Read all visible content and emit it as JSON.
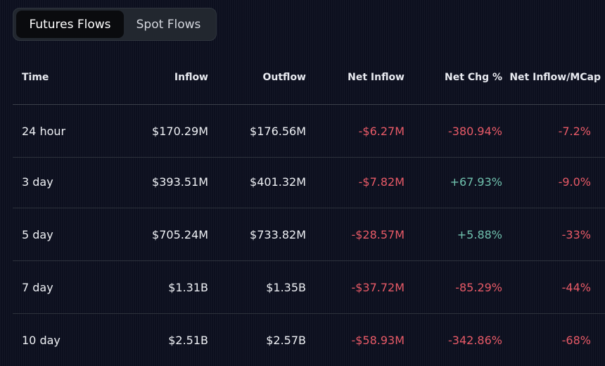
{
  "tabs": {
    "futures_label": "Futures Flows",
    "spot_label": "Spot Flows",
    "active": "futures"
  },
  "columns": {
    "time": "Time",
    "inflow": "Inflow",
    "outflow": "Outflow",
    "net_inflow": "Net Inflow",
    "net_chg": "Net Chg %",
    "net_inflow_mcap": "Net Inflow/MCap"
  },
  "rows": [
    {
      "time": "24 hour",
      "inflow": "$170.29M",
      "outflow": "$176.56M",
      "net_inflow": "-$6.27M",
      "net_chg": "-380.94%",
      "net_inflow_mcap": "-7.2%"
    },
    {
      "time": "3 day",
      "inflow": "$393.51M",
      "outflow": "$401.32M",
      "net_inflow": "-$7.82M",
      "net_chg": "+67.93%",
      "net_inflow_mcap": "-9.0%"
    },
    {
      "time": "5 day",
      "inflow": "$705.24M",
      "outflow": "$733.82M",
      "net_inflow": "-$28.57M",
      "net_chg": "+5.88%",
      "net_inflow_mcap": "-33%"
    },
    {
      "time": "7 day",
      "inflow": "$1.31B",
      "outflow": "$1.35B",
      "net_inflow": "-$37.72M",
      "net_chg": "-85.29%",
      "net_inflow_mcap": "-44%"
    },
    {
      "time": "10 day",
      "inflow": "$2.51B",
      "outflow": "$2.57B",
      "net_inflow": "-$58.93M",
      "net_chg": "-342.86%",
      "net_inflow_mcap": "-68%"
    }
  ],
  "colors": {
    "background": "#0c0f1e",
    "negative": "#e85a67",
    "positive": "#6fc0ad",
    "tab_active_bg": "#0a0b0e",
    "tab_container_bg": "#22272f"
  }
}
